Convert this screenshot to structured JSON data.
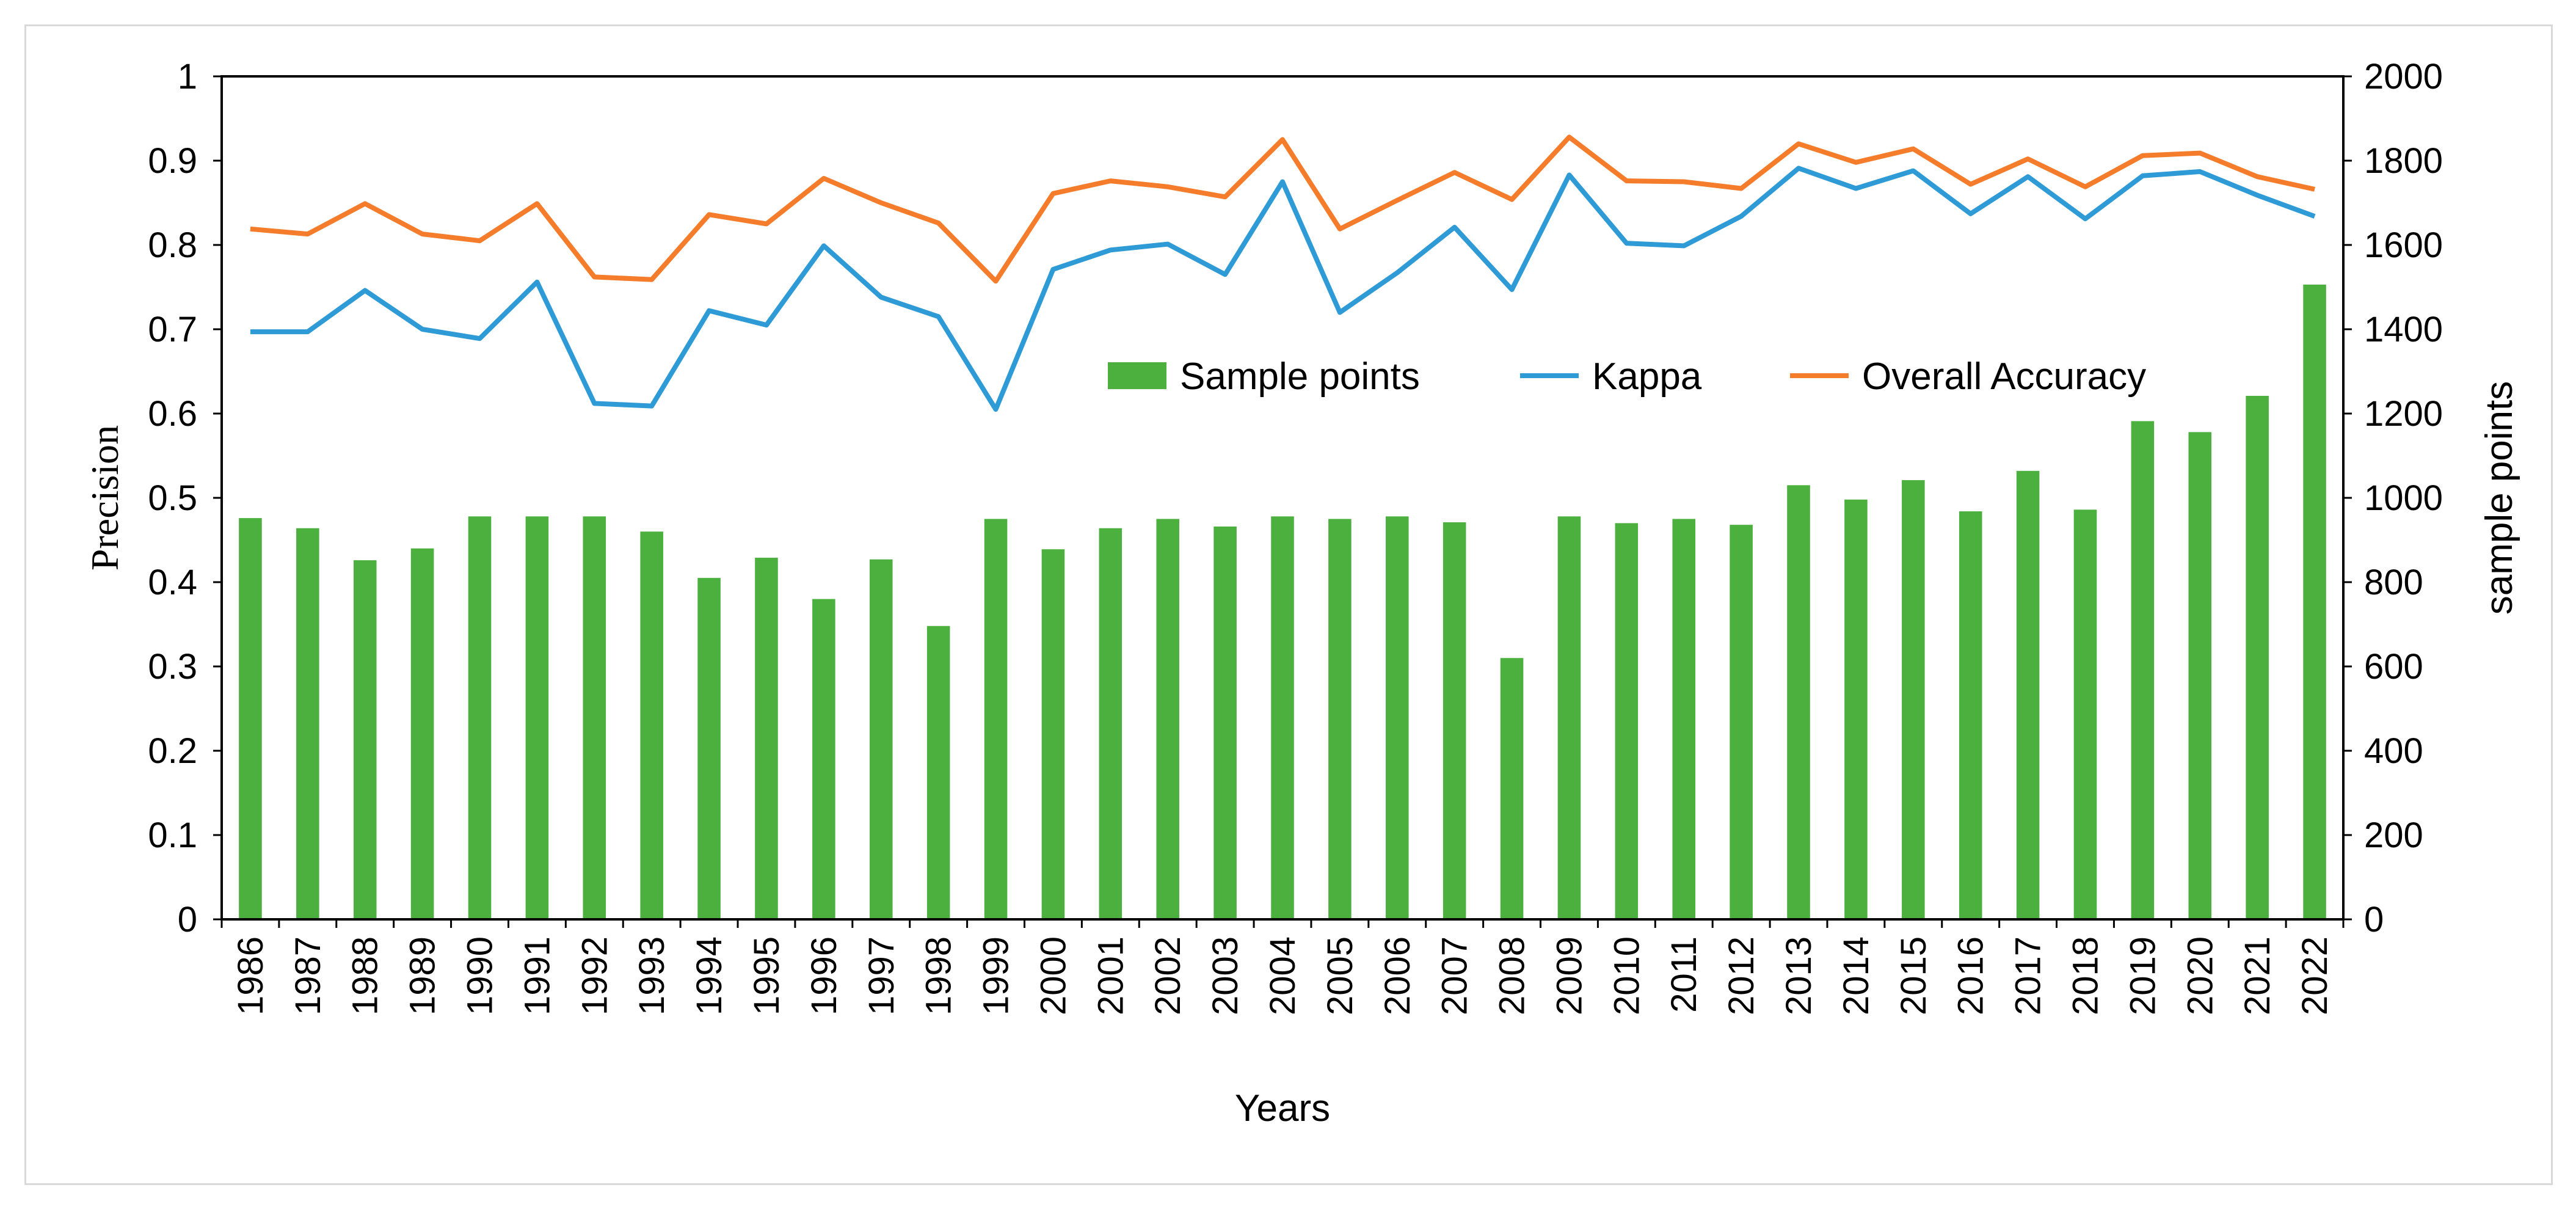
{
  "chart_data": {
    "type": "bar",
    "title": "",
    "xlabel": "Years",
    "ylabel": "Precision",
    "y2label": "sample points",
    "ylim": [
      0,
      1
    ],
    "y2lim": [
      0,
      2000
    ],
    "yticks": [
      "0",
      "0.1",
      "0.2",
      "0.3",
      "0.4",
      "0.5",
      "0.6",
      "0.7",
      "0.8",
      "0.9",
      "1"
    ],
    "y2ticks": [
      "0",
      "200",
      "400",
      "600",
      "800",
      "1000",
      "1200",
      "1400",
      "1600",
      "1800",
      "2000"
    ],
    "legend_position": "center",
    "categories": [
      "1986",
      "1987",
      "1988",
      "1989",
      "1990",
      "1991",
      "1992",
      "1993",
      "1994",
      "1995",
      "1996",
      "1997",
      "1998",
      "1999",
      "2000",
      "2001",
      "2002",
      "2003",
      "2004",
      "2005",
      "2006",
      "2007",
      "2008",
      "2009",
      "2010",
      "2011",
      "2012",
      "2013",
      "2014",
      "2015",
      "2016",
      "2017",
      "2018",
      "2019",
      "2020",
      "2021",
      "2022"
    ],
    "series": [
      {
        "name": "Sample points",
        "type": "bar",
        "axis": "right",
        "color": "#4cb03f",
        "values": [
          952,
          928,
          852,
          880,
          956,
          956,
          956,
          920,
          810,
          858,
          760,
          854,
          696,
          950,
          878,
          928,
          950,
          932,
          956,
          950,
          956,
          942,
          620,
          956,
          940,
          950,
          936,
          1030,
          996,
          1042,
          968,
          1064,
          972,
          1182,
          1156,
          1242,
          1506
        ]
      },
      {
        "name": "Kappa",
        "type": "line",
        "axis": "left",
        "color": "#2e9ad6",
        "values": [
          0.697,
          0.697,
          0.746,
          0.7,
          0.689,
          0.756,
          0.612,
          0.609,
          0.722,
          0.705,
          0.799,
          0.738,
          0.715,
          0.605,
          0.771,
          0.794,
          0.801,
          0.765,
          0.875,
          0.72,
          0.767,
          0.821,
          0.747,
          0.883,
          0.802,
          0.799,
          0.834,
          0.891,
          0.867,
          0.888,
          0.837,
          0.881,
          0.831,
          0.882,
          0.887,
          0.859,
          0.834
        ]
      },
      {
        "name": "Overall Accuracy",
        "type": "line",
        "axis": "left",
        "color": "#f47c2a",
        "values": [
          0.819,
          0.813,
          0.849,
          0.813,
          0.805,
          0.849,
          0.762,
          0.759,
          0.836,
          0.825,
          0.879,
          0.85,
          0.826,
          0.757,
          0.861,
          0.876,
          0.869,
          0.857,
          0.925,
          0.819,
          0.853,
          0.886,
          0.854,
          0.928,
          0.876,
          0.875,
          0.867,
          0.92,
          0.898,
          0.914,
          0.872,
          0.902,
          0.869,
          0.906,
          0.909,
          0.881,
          0.866
        ]
      }
    ]
  }
}
